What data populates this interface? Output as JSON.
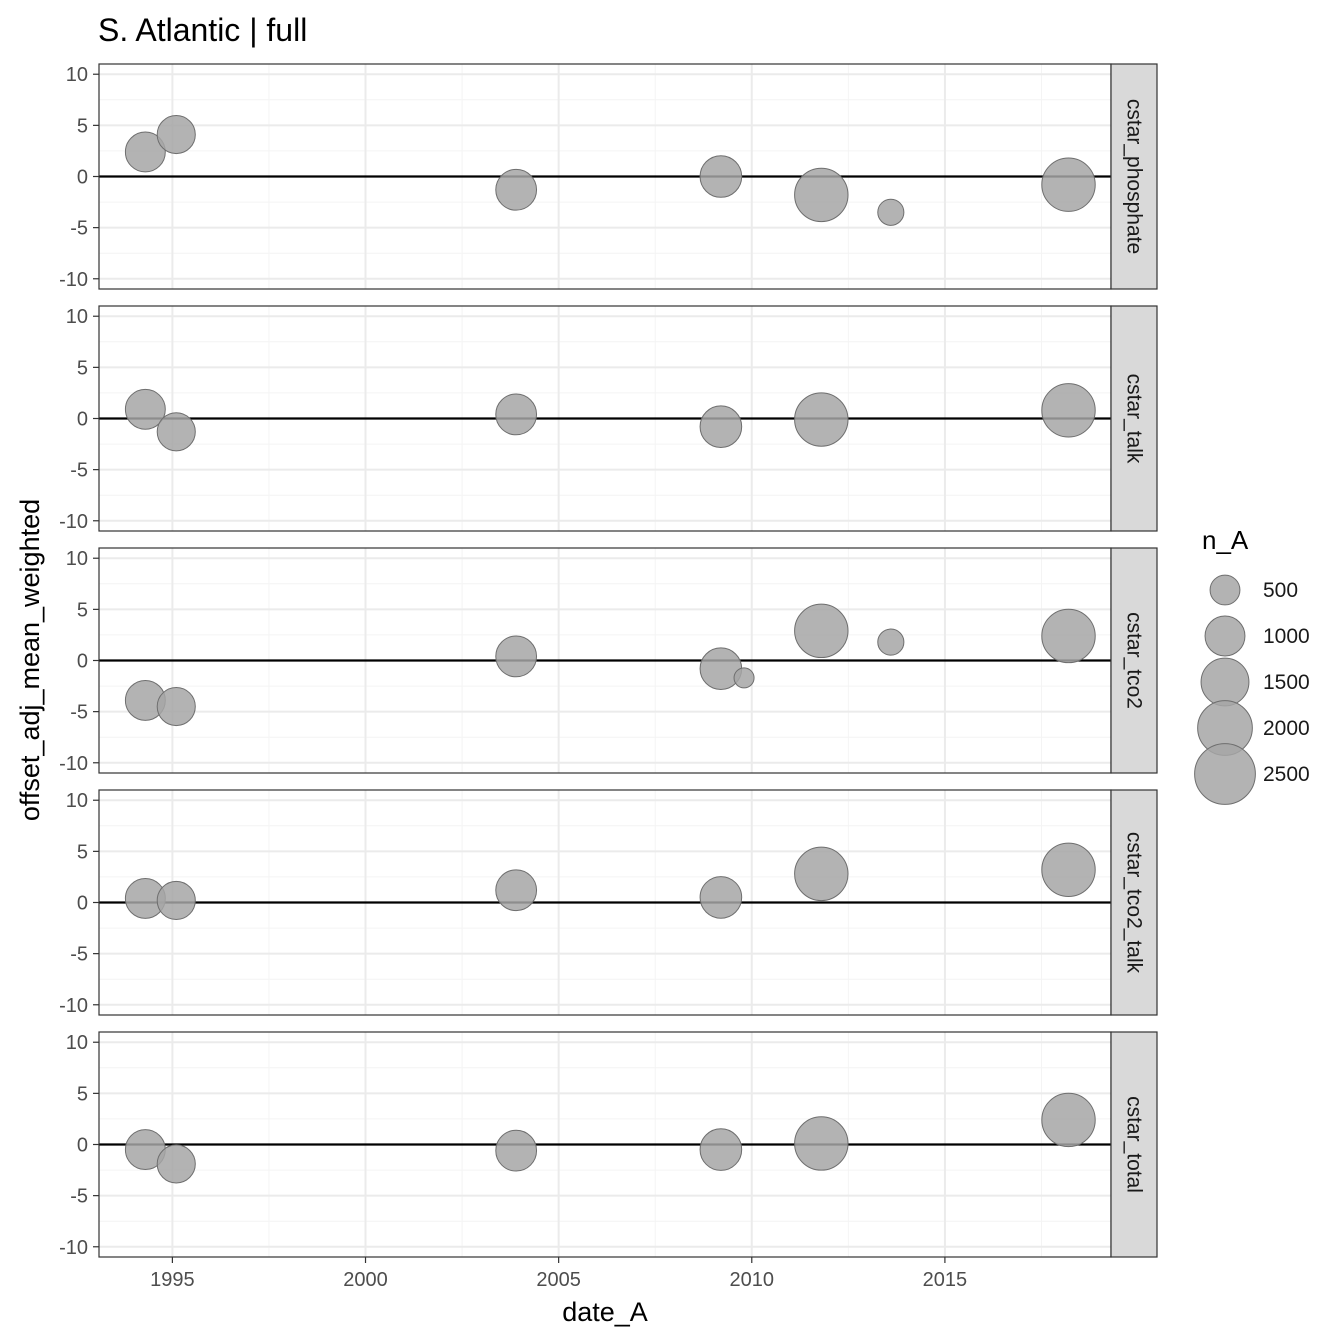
{
  "chart_data": {
    "type": "scatter",
    "title": "S. Atlantic | full",
    "xlabel": "date_A",
    "ylabel": "offset_adj_mean_weighted",
    "xlim": [
      1993.1,
      2019.3
    ],
    "ylim": [
      -11,
      11
    ],
    "x_ticks": [
      1995,
      2000,
      2005,
      2010,
      2015
    ],
    "x_tick_labels": [
      "1995",
      "2000",
      "2005",
      "2010",
      "2015"
    ],
    "y_ticks": [
      -10,
      -5,
      0,
      5,
      10
    ],
    "y_tick_labels": [
      "-10",
      "-5",
      "0",
      "5",
      "10"
    ],
    "reference_line": 0,
    "grid": true,
    "colors": {
      "point_fill": "#a6a6a6",
      "point_stroke": "#6e6e6e",
      "strip_fill": "#d9d9d9",
      "grid_major": "#ebebeb",
      "grid_minor": "#f4f4f4",
      "axis_text": "#4d4d4d"
    },
    "legend": {
      "title": "n_A",
      "placement": "right",
      "entries": [
        {
          "label": "500",
          "value": 500
        },
        {
          "label": "1000",
          "value": 1000
        },
        {
          "label": "1500",
          "value": 1500
        },
        {
          "label": "2000",
          "value": 2000
        },
        {
          "label": "2500",
          "value": 2500
        }
      ]
    },
    "size_range": [
      150,
      2900
    ],
    "panels": [
      {
        "name": "cstar_phosphate",
        "points": [
          {
            "x": 1994.3,
            "y": 2.4,
            "n": 1000
          },
          {
            "x": 1995.1,
            "y": 4.1,
            "n": 900
          },
          {
            "x": 2003.9,
            "y": -1.3,
            "n": 1050
          },
          {
            "x": 2009.2,
            "y": 0.0,
            "n": 1100
          },
          {
            "x": 2011.8,
            "y": -1.8,
            "n": 1900
          },
          {
            "x": 2013.6,
            "y": -3.5,
            "n": 350
          },
          {
            "x": 2018.2,
            "y": -0.8,
            "n": 1900
          }
        ]
      },
      {
        "name": "cstar_talk",
        "points": [
          {
            "x": 1994.3,
            "y": 0.9,
            "n": 1000
          },
          {
            "x": 1995.1,
            "y": -1.3,
            "n": 900
          },
          {
            "x": 2003.9,
            "y": 0.4,
            "n": 1050
          },
          {
            "x": 2009.2,
            "y": -0.8,
            "n": 1100
          },
          {
            "x": 2011.8,
            "y": -0.1,
            "n": 1900
          },
          {
            "x": 2018.2,
            "y": 0.8,
            "n": 1900
          }
        ]
      },
      {
        "name": "cstar_tco2",
        "points": [
          {
            "x": 1994.3,
            "y": -3.9,
            "n": 1000
          },
          {
            "x": 1995.1,
            "y": -4.5,
            "n": 900
          },
          {
            "x": 2003.9,
            "y": 0.4,
            "n": 1050
          },
          {
            "x": 2009.2,
            "y": -0.8,
            "n": 1100
          },
          {
            "x": 2009.8,
            "y": -1.7,
            "n": 150
          },
          {
            "x": 2011.8,
            "y": 2.9,
            "n": 1900
          },
          {
            "x": 2013.6,
            "y": 1.8,
            "n": 350
          },
          {
            "x": 2018.2,
            "y": 2.4,
            "n": 1900
          }
        ]
      },
      {
        "name": "cstar_tco2_talk",
        "points": [
          {
            "x": 1994.3,
            "y": 0.4,
            "n": 1000
          },
          {
            "x": 1995.1,
            "y": 0.2,
            "n": 900
          },
          {
            "x": 2003.9,
            "y": 1.2,
            "n": 1050
          },
          {
            "x": 2009.2,
            "y": 0.5,
            "n": 1100
          },
          {
            "x": 2011.8,
            "y": 2.8,
            "n": 1900
          },
          {
            "x": 2018.2,
            "y": 3.2,
            "n": 1900
          }
        ]
      },
      {
        "name": "cstar_total",
        "points": [
          {
            "x": 1994.3,
            "y": -0.5,
            "n": 1000
          },
          {
            "x": 1995.1,
            "y": -1.9,
            "n": 900
          },
          {
            "x": 2003.9,
            "y": -0.6,
            "n": 1050
          },
          {
            "x": 2009.2,
            "y": -0.5,
            "n": 1100
          },
          {
            "x": 2011.8,
            "y": 0.1,
            "n": 1900
          },
          {
            "x": 2018.2,
            "y": 2.4,
            "n": 1900
          }
        ]
      }
    ]
  }
}
